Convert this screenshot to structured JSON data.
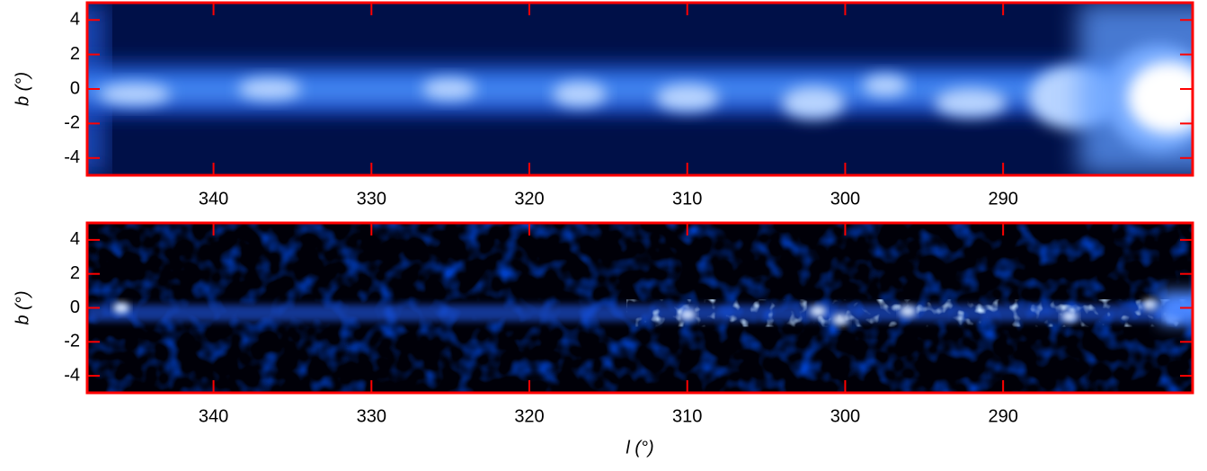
{
  "chart_data": [
    {
      "type": "image",
      "ylabel": "b (°)",
      "xlim": [
        348,
        278
      ],
      "xticks": [
        340,
        330,
        320,
        310,
        300,
        290
      ],
      "ylim": [
        -5,
        5
      ],
      "yticks": [
        4,
        2,
        0,
        -2,
        -4
      ],
      "frame_color": "#ff0000",
      "style": "smooth"
    },
    {
      "type": "image",
      "ylabel": "b (°)",
      "xlabel": "l (°)",
      "xlim": [
        348,
        278
      ],
      "xticks": [
        340,
        330,
        320,
        310,
        300,
        290
      ],
      "ylim": [
        -5,
        5
      ],
      "yticks": [
        4,
        2,
        0,
        -2,
        -4
      ],
      "frame_color": "#ff0000",
      "style": "residual"
    }
  ]
}
